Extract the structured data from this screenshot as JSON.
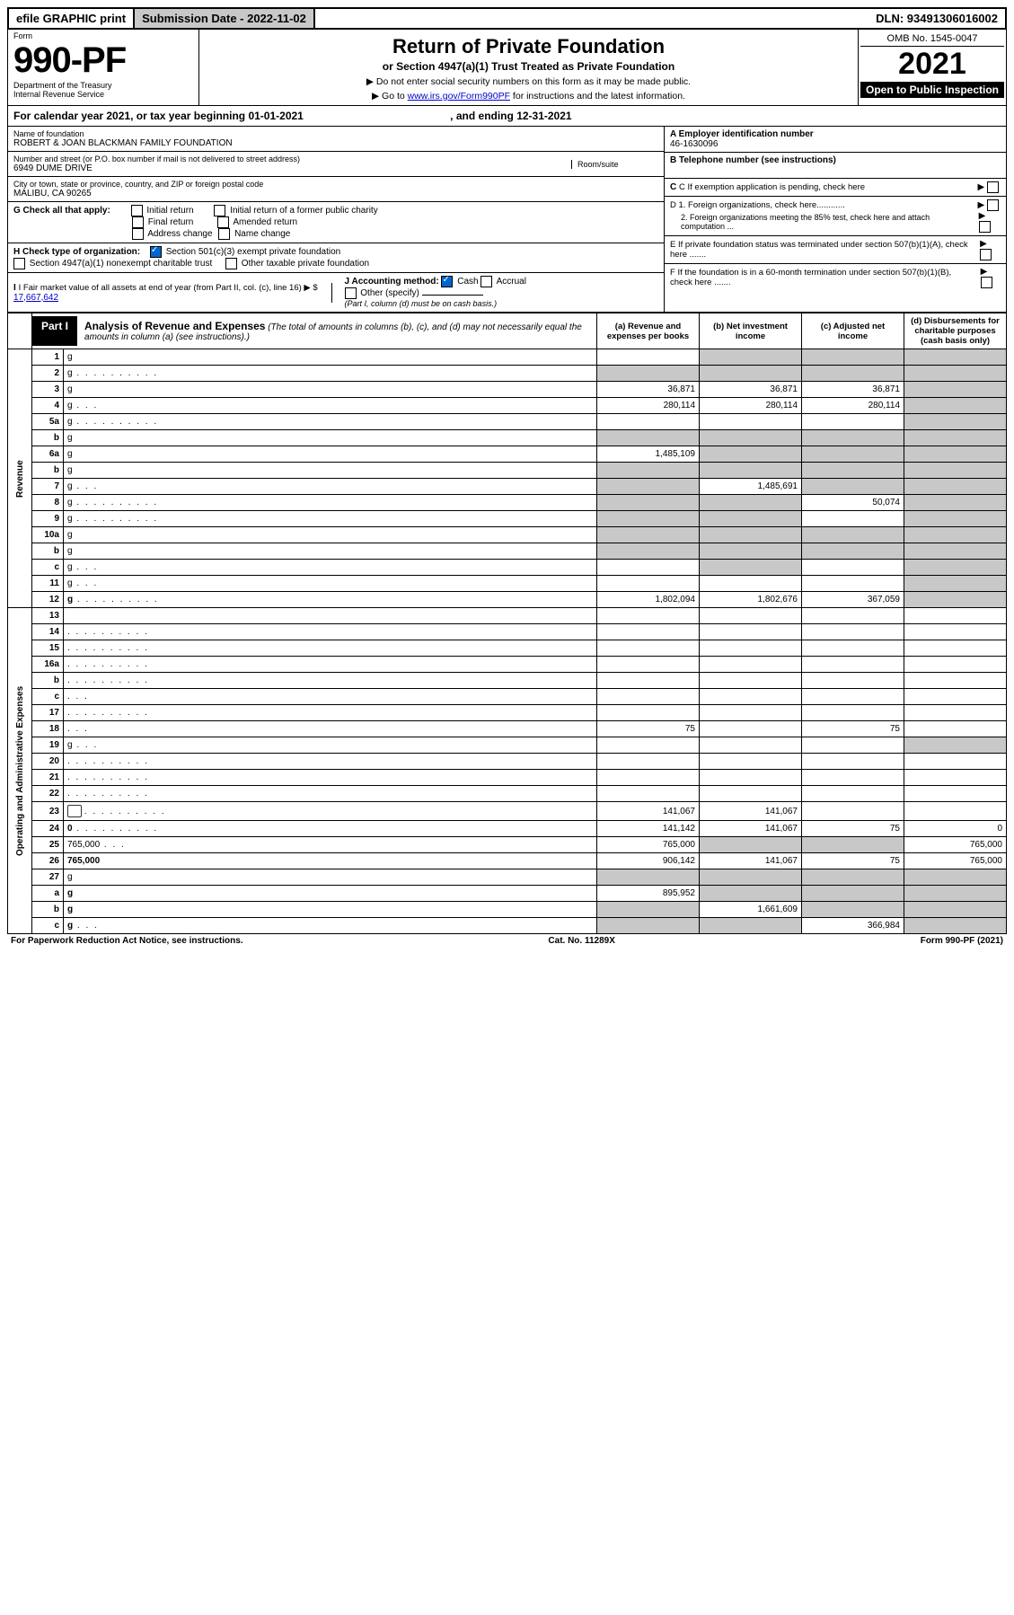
{
  "topbar": {
    "efile": "efile GRAPHIC print",
    "sub_label": "Submission Date - 2022-11-02",
    "dln": "DLN: 93491306016002"
  },
  "header": {
    "form_word": "Form",
    "form_no": "990-PF",
    "dept": "Department of the Treasury",
    "irs": "Internal Revenue Service",
    "title": "Return of Private Foundation",
    "subtitle": "or Section 4947(a)(1) Trust Treated as Private Foundation",
    "instr1": "▶ Do not enter social security numbers on this form as it may be made public.",
    "instr2_pre": "▶ Go to ",
    "instr2_link": "www.irs.gov/Form990PF",
    "instr2_post": " for instructions and the latest information.",
    "omb": "OMB No. 1545-0047",
    "year": "2021",
    "open": "Open to Public Inspection"
  },
  "calyear": {
    "text_pre": "For calendar year 2021, or tax year beginning ",
    "begin": "01-01-2021",
    "mid": " , and ending ",
    "end": "12-31-2021"
  },
  "info": {
    "name_label": "Name of foundation",
    "name": "ROBERT & JOAN BLACKMAN FAMILY FOUNDATION",
    "addr_label": "Number and street (or P.O. box number if mail is not delivered to street address)",
    "addr": "6949 DUME DRIVE",
    "room_label": "Room/suite",
    "city_label": "City or town, state or province, country, and ZIP or foreign postal code",
    "city": "MALIBU, CA  90265",
    "a_label": "A Employer identification number",
    "a_val": "46-1630096",
    "b_label": "B Telephone number (see instructions)",
    "c_label": "C If exemption application is pending, check here",
    "d1": "D 1. Foreign organizations, check here............",
    "d2": "2. Foreign organizations meeting the 85% test, check here and attach computation ...",
    "e_label": "E If private foundation status was terminated under section 507(b)(1)(A), check here .......",
    "f_label": "F If the foundation is in a 60-month termination under section 507(b)(1)(B), check here .......",
    "g_label": "G Check all that apply:",
    "g_opts": [
      "Initial return",
      "Final return",
      "Address change",
      "Initial return of a former public charity",
      "Amended return",
      "Name change"
    ],
    "h_label": "H Check type of organization:",
    "h_opt1": "Section 501(c)(3) exempt private foundation",
    "h_opt2": "Section 4947(a)(1) nonexempt charitable trust",
    "h_opt3": "Other taxable private foundation",
    "i_label": "I Fair market value of all assets at end of year (from Part II, col. (c), line 16) ▶ $",
    "i_val": "17,667,642",
    "j_label": "J Accounting method:",
    "j_cash": "Cash",
    "j_accrual": "Accrual",
    "j_other": "Other (specify)",
    "j_note": "(Part I, column (d) must be on cash basis.)"
  },
  "part1": {
    "tag": "Part I",
    "title": "Analysis of Revenue and Expenses",
    "note": "(The total of amounts in columns (b), (c), and (d) may not necessarily equal the amounts in column (a) (see instructions).)",
    "col_a": "(a) Revenue and expenses per books",
    "col_b": "(b) Net investment income",
    "col_c": "(c) Adjusted net income",
    "col_d": "(d) Disbursements for charitable purposes (cash basis only)"
  },
  "side_labels": {
    "rev": "Revenue",
    "exp": "Operating and Administrative Expenses"
  },
  "rows": [
    {
      "n": "1",
      "d": "g",
      "a": "",
      "b": "g",
      "c": "g"
    },
    {
      "n": "2",
      "d": "g",
      "dots": true,
      "a": "g",
      "b": "g",
      "c": "g"
    },
    {
      "n": "3",
      "d": "g",
      "a": "36,871",
      "b": "36,871",
      "c": "36,871"
    },
    {
      "n": "4",
      "d": "g",
      "dots": "sm",
      "a": "280,114",
      "b": "280,114",
      "c": "280,114"
    },
    {
      "n": "5a",
      "d": "g",
      "dots": true,
      "a": "",
      "b": "",
      "c": ""
    },
    {
      "n": "b",
      "d": "g",
      "a": "g",
      "b": "g",
      "c": "g"
    },
    {
      "n": "6a",
      "d": "g",
      "a": "1,485,109",
      "b": "g",
      "c": "g"
    },
    {
      "n": "b",
      "d": "g",
      "a": "g",
      "b": "g",
      "c": "g"
    },
    {
      "n": "7",
      "d": "g",
      "dots": "sm",
      "a": "g",
      "b": "1,485,691",
      "c": "g"
    },
    {
      "n": "8",
      "d": "g",
      "dots": true,
      "a": "g",
      "b": "g",
      "c": "50,074"
    },
    {
      "n": "9",
      "d": "g",
      "dots": true,
      "a": "g",
      "b": "g",
      "c": ""
    },
    {
      "n": "10a",
      "d": "g",
      "a": "g",
      "b": "g",
      "c": "g"
    },
    {
      "n": "b",
      "d": "g",
      "a": "g",
      "b": "g",
      "c": "g"
    },
    {
      "n": "c",
      "d": "g",
      "dots": "sm",
      "a": "",
      "b": "g",
      "c": ""
    },
    {
      "n": "11",
      "d": "g",
      "dots": "sm",
      "a": "",
      "b": "",
      "c": ""
    },
    {
      "n": "12",
      "d": "g",
      "dots": true,
      "bold": true,
      "a": "1,802,094",
      "b": "1,802,676",
      "c": "367,059"
    },
    {
      "n": "13",
      "d": "",
      "a": "",
      "b": "",
      "c": ""
    },
    {
      "n": "14",
      "d": "",
      "dots": true,
      "a": "",
      "b": "",
      "c": ""
    },
    {
      "n": "15",
      "d": "",
      "dots": true,
      "a": "",
      "b": "",
      "c": ""
    },
    {
      "n": "16a",
      "d": "",
      "dots": true,
      "a": "",
      "b": "",
      "c": ""
    },
    {
      "n": "b",
      "d": "",
      "dots": true,
      "a": "",
      "b": "",
      "c": ""
    },
    {
      "n": "c",
      "d": "",
      "dots": "sm",
      "a": "",
      "b": "",
      "c": ""
    },
    {
      "n": "17",
      "d": "",
      "dots": true,
      "a": "",
      "b": "",
      "c": ""
    },
    {
      "n": "18",
      "d": "",
      "dots": "sm",
      "a": "75",
      "b": "",
      "c": "75"
    },
    {
      "n": "19",
      "d": "g",
      "dots": "sm",
      "a": "",
      "b": "",
      "c": ""
    },
    {
      "n": "20",
      "d": "",
      "dots": true,
      "a": "",
      "b": "",
      "c": ""
    },
    {
      "n": "21",
      "d": "",
      "dots": true,
      "a": "",
      "b": "",
      "c": ""
    },
    {
      "n": "22",
      "d": "",
      "dots": true,
      "a": "",
      "b": "",
      "c": ""
    },
    {
      "n": "23",
      "d": "",
      "dots": true,
      "icon": true,
      "a": "141,067",
      "b": "141,067",
      "c": ""
    },
    {
      "n": "24",
      "d": "0",
      "dots": true,
      "bold": true,
      "a": "141,142",
      "b": "141,067",
      "c": "75"
    },
    {
      "n": "25",
      "d": "765,000",
      "dots": "sm",
      "a": "765,000",
      "b": "g",
      "c": "g"
    },
    {
      "n": "26",
      "d": "765,000",
      "bold": true,
      "a": "906,142",
      "b": "141,067",
      "c": "75"
    },
    {
      "n": "27",
      "d": "g",
      "a": "g",
      "b": "g",
      "c": "g"
    },
    {
      "n": "a",
      "d": "g",
      "bold": true,
      "a": "895,952",
      "b": "g",
      "c": "g"
    },
    {
      "n": "b",
      "d": "g",
      "bold": true,
      "a": "g",
      "b": "1,661,609",
      "c": "g"
    },
    {
      "n": "c",
      "d": "g",
      "dots": "sm",
      "bold": true,
      "a": "g",
      "b": "g",
      "c": "366,984"
    }
  ],
  "footer": {
    "left": "For Paperwork Reduction Act Notice, see instructions.",
    "mid": "Cat. No. 11289X",
    "right": "Form 990-PF (2021)"
  }
}
